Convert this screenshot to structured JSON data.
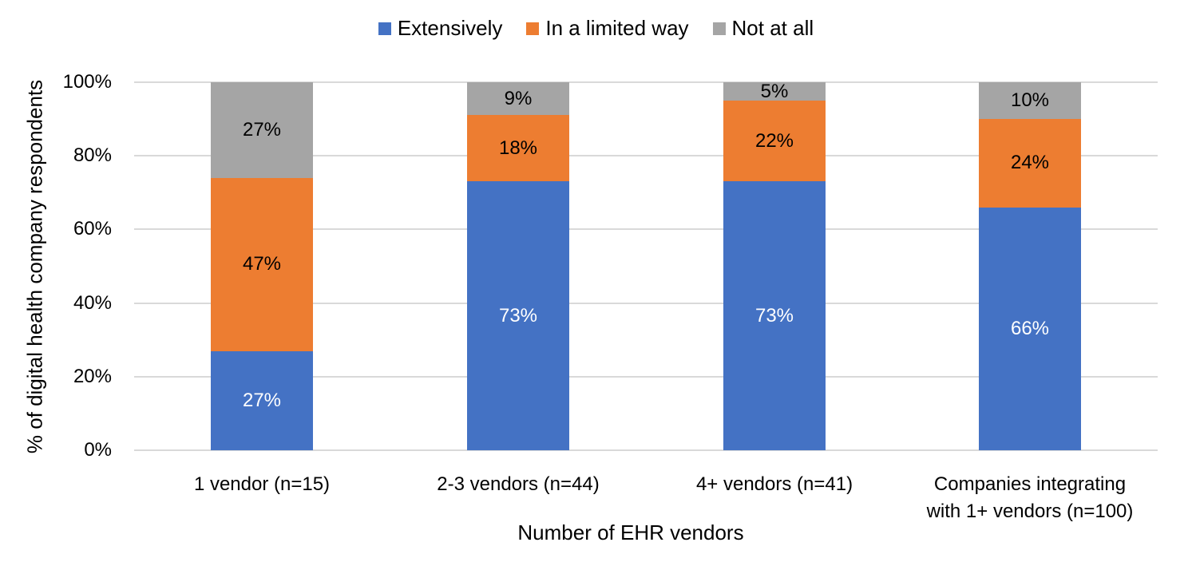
{
  "chart_data": {
    "type": "bar",
    "stacked": true,
    "title": "",
    "xlabel": "Number of EHR vendors",
    "ylabel": "% of digital health company respondents",
    "ylim": [
      0,
      100
    ],
    "yticks": [
      "0%",
      "20%",
      "40%",
      "60%",
      "80%",
      "100%"
    ],
    "grid": true,
    "legend_position": "top",
    "categories": [
      "1 vendor (n=15)",
      "2-3 vendors (n=44)",
      "4+ vendors (n=41)",
      "Companies integrating with 1+ vendors (n=100)"
    ],
    "category_lines": [
      [
        "1 vendor (n=15)"
      ],
      [
        "2-3 vendors (n=44)"
      ],
      [
        "4+ vendors (n=41)"
      ],
      [
        "Companies integrating",
        "with 1+ vendors (n=100)"
      ]
    ],
    "series": [
      {
        "name": "Extensively",
        "color": "#4472C4",
        "label_color": "#ffffff",
        "values": [
          27,
          73,
          73,
          66
        ],
        "labels": [
          "27%",
          "73%",
          "73%",
          "66%"
        ]
      },
      {
        "name": "In a limited way",
        "color": "#ED7D31",
        "label_color": "#000000",
        "values": [
          47,
          18,
          22,
          24
        ],
        "labels": [
          "47%",
          "18%",
          "22%",
          "24%"
        ]
      },
      {
        "name": "Not at all",
        "color": "#A5A5A5",
        "label_color": "#000000",
        "values": [
          27,
          9,
          5,
          10
        ],
        "labels": [
          "27%",
          "9%",
          "5%",
          "10%"
        ]
      }
    ]
  }
}
